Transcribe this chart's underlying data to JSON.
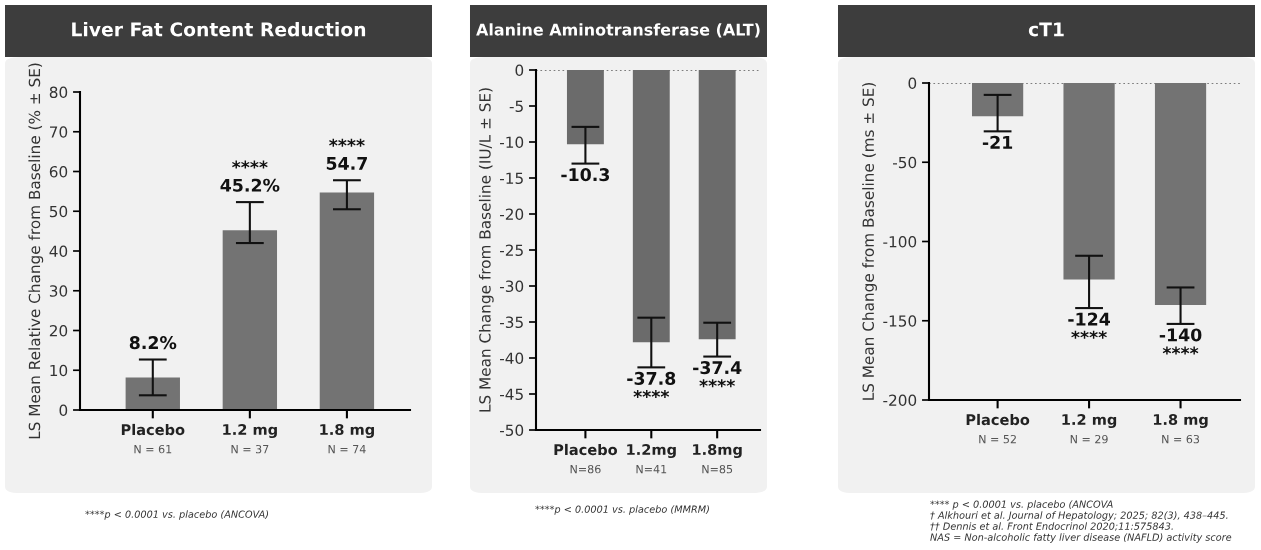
{
  "chart_data": [
    {
      "type": "bar",
      "title": "Liver Fat Content Reduction",
      "ylabel": "LS Mean Relative Change from Baseline (% ± SE)",
      "categories": [
        "Placebo\nN = 61",
        "1.2 mg\nN = 37",
        "1.8 mg\nN = 74"
      ],
      "values": [
        8.2,
        45.2,
        54.7
      ],
      "color": "#737373",
      "errors": [
        [
          3.7,
          12.7
        ],
        [
          42,
          52.3
        ],
        [
          50.5,
          57.8
        ]
      ],
      "value_labels": [
        "8.2%",
        "****\n45.2%",
        "****\n54.7"
      ],
      "ylim": [
        0,
        80
      ],
      "yticks": [
        0,
        10,
        20,
        30,
        40,
        50,
        60,
        70,
        80
      ],
      "grid": false,
      "annotations": [
        "****p < 0.0001 vs. placebo (ANCOVA)"
      ]
    },
    {
      "type": "bar",
      "title": "Alanine Aminotransferase (ALT)",
      "ylabel": "LS Mean Change from Baseline (IU/L ± SE)",
      "categories": [
        "Placebo\nN=86",
        "1.2mg\nN=41",
        "1.8mg\nN=85"
      ],
      "values": [
        -10.3,
        -37.8,
        -37.4
      ],
      "color": "#6b6b6b",
      "errors": [
        [
          -13,
          -7.9
        ],
        [
          -41.3,
          -34.4
        ],
        [
          -39.8,
          -35.1
        ]
      ],
      "value_labels": [
        "-10.3",
        "-37.8\n****",
        "-37.4\n****"
      ],
      "ylim": [
        -50,
        0
      ],
      "yticks": [
        0,
        -5,
        -10,
        -15,
        -20,
        -25,
        -30,
        -35,
        -40,
        -45,
        -50
      ],
      "grid": false,
      "ref_lines": [
        {
          "axis": "y",
          "value": 0,
          "line_style": "dotted",
          "color": "#555555"
        }
      ],
      "annotations": [
        "****p < 0.0001 vs. placebo (MMRM)"
      ]
    },
    {
      "type": "bar",
      "title": "cT1",
      "ylabel": "LS Mean Change from Baseline (ms ± SE)",
      "categories": [
        "Placebo\nN = 52",
        "1.2 mg\nN = 29",
        "1.8 mg\nN = 63"
      ],
      "values": [
        -21,
        -124,
        -140
      ],
      "color": "#737373",
      "errors": [
        [
          -30.5,
          -7.5
        ],
        [
          -142,
          -109
        ],
        [
          -152,
          -129
        ]
      ],
      "value_labels": [
        "-21",
        "-124\n****",
        "-140\n****"
      ],
      "ylim": [
        -200,
        0
      ],
      "yticks": [
        0,
        -50,
        -100,
        -150,
        -200
      ],
      "grid": false,
      "ref_lines": [
        {
          "axis": "y",
          "value": 0,
          "line_style": "dotted",
          "color": "#555555"
        }
      ],
      "annotations": [
        "**** p < 0.0001 vs. placebo (ANCOVA",
        "† Alkhouri et al. Journal of Hepatology; 2025; 82(3), 438–445.",
        "†† Dennis et al. Front Endocrinol 2020;11:575843.",
        "NAS = Non-alcoholic fatty liver disease (NAFLD) activity score"
      ]
    }
  ]
}
